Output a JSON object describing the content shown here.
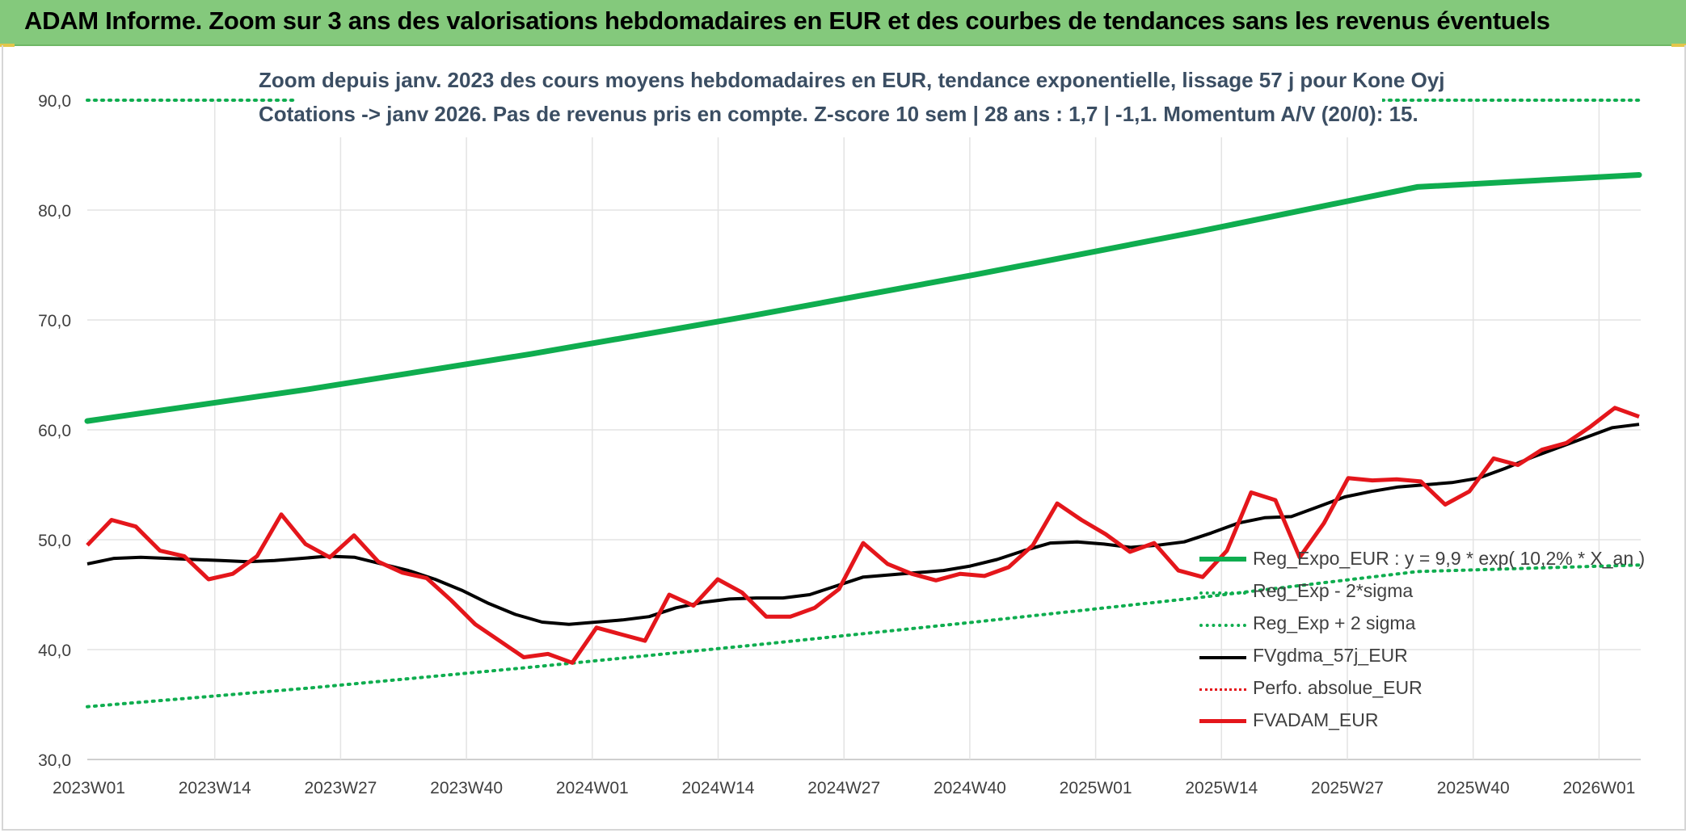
{
  "header": {
    "title": "ADAM Informe. Zoom sur 3 ans des valorisations hebdomadaires en EUR et des courbes de tendances sans les revenus éventuels"
  },
  "colors": {
    "banner": "#84c97c",
    "trend": "#0fad4f",
    "bands": "#0fad4f",
    "mma": "#000000",
    "price": "#e4161b"
  },
  "chart_data": {
    "type": "line",
    "title": "Zoom depuis janv. 2023 des cours moyens hebdomadaires en EUR, tendance exponentielle, lissage 57 j pour Kone Oyj",
    "subtitle": "Cotations -> janv 2026. Pas de revenus pris en compte. Z-score 10 sem | 28 ans : 1,7 | -1,1. Momentum A/V (20/0): 15.",
    "xlabel": "",
    "ylabel": "",
    "ylim": [
      30,
      90
    ],
    "y_ticks": [
      "30,0",
      "40,0",
      "50,0",
      "60,0",
      "70,0",
      "80,0",
      "90,0"
    ],
    "x_ticks": [
      "2023W01",
      "2023W14",
      "2023W27",
      "2023W40",
      "2024W01",
      "2024W14",
      "2024W27",
      "2024W40",
      "2025W01",
      "2025W14",
      "2025W27",
      "2025W40",
      "2026W01"
    ],
    "grid": true,
    "legend_position": "bottom-right",
    "series": [
      {
        "name": "Reg_Expo_EUR : y = 9,9 * exp( 10,2% * X_an )",
        "style": "solid-thick",
        "color": "#0fad4f",
        "values": [
          60.8,
          63.7,
          66.9,
          70.4,
          74.1,
          78.0,
          82.1,
          83.2
        ]
      },
      {
        "name": "Reg_Exp - 2*sigma",
        "style": "dotted",
        "color": "#0fad4f",
        "values": [
          34.8,
          36.5,
          38.4,
          40.4,
          42.5,
          44.7,
          47.1,
          47.7
        ]
      },
      {
        "name": "Reg_Exp + 2 sigma",
        "style": "dotted",
        "color": "#0fad4f",
        "values": [
          90.0,
          90.0
        ]
      },
      {
        "name": "FVgdma_57j_EUR",
        "style": "solid",
        "color": "#000000",
        "values": [
          47.8,
          48.3,
          48.4,
          48.3,
          48.2,
          48.1,
          48.0,
          48.1,
          48.3,
          48.5,
          48.4,
          47.8,
          47.2,
          46.4,
          45.4,
          44.2,
          43.2,
          42.5,
          42.3,
          42.5,
          42.7,
          43.0,
          43.8,
          44.3,
          44.6,
          44.7,
          44.7,
          45.0,
          45.8,
          46.6,
          46.8,
          47.0,
          47.2,
          47.6,
          48.2,
          49.0,
          49.7,
          49.8,
          49.6,
          49.3,
          49.5,
          49.8,
          50.6,
          51.5,
          52.0,
          52.1,
          53.0,
          53.9,
          54.4,
          54.8,
          55.0,
          55.2,
          55.6,
          56.5,
          57.5,
          58.4,
          59.3,
          60.2,
          60.5
        ]
      },
      {
        "name": "Perfo. absolue_EUR",
        "style": "dotted",
        "color": "#e4161b",
        "values": []
      },
      {
        "name": "FVADAM_EUR",
        "style": "solid-thick",
        "color": "#e4161b",
        "values": [
          49.5,
          51.8,
          51.2,
          49.0,
          48.5,
          46.4,
          46.9,
          48.5,
          52.3,
          49.6,
          48.4,
          50.4,
          48.0,
          47.0,
          46.5,
          44.5,
          42.3,
          40.8,
          39.3,
          39.6,
          38.8,
          42.0,
          41.4,
          40.8,
          45.0,
          44.0,
          46.4,
          45.2,
          43.0,
          43.0,
          43.8,
          45.5,
          49.7,
          47.8,
          46.9,
          46.3,
          46.9,
          46.7,
          47.5,
          49.5,
          53.3,
          51.8,
          50.5,
          48.9,
          49.7,
          47.2,
          46.6,
          49.0,
          54.3,
          53.6,
          48.4,
          51.5,
          55.6,
          55.4,
          55.5,
          55.3,
          53.2,
          54.4,
          57.4,
          56.8,
          58.2,
          58.8,
          60.3,
          62.0,
          61.2
        ]
      }
    ]
  }
}
